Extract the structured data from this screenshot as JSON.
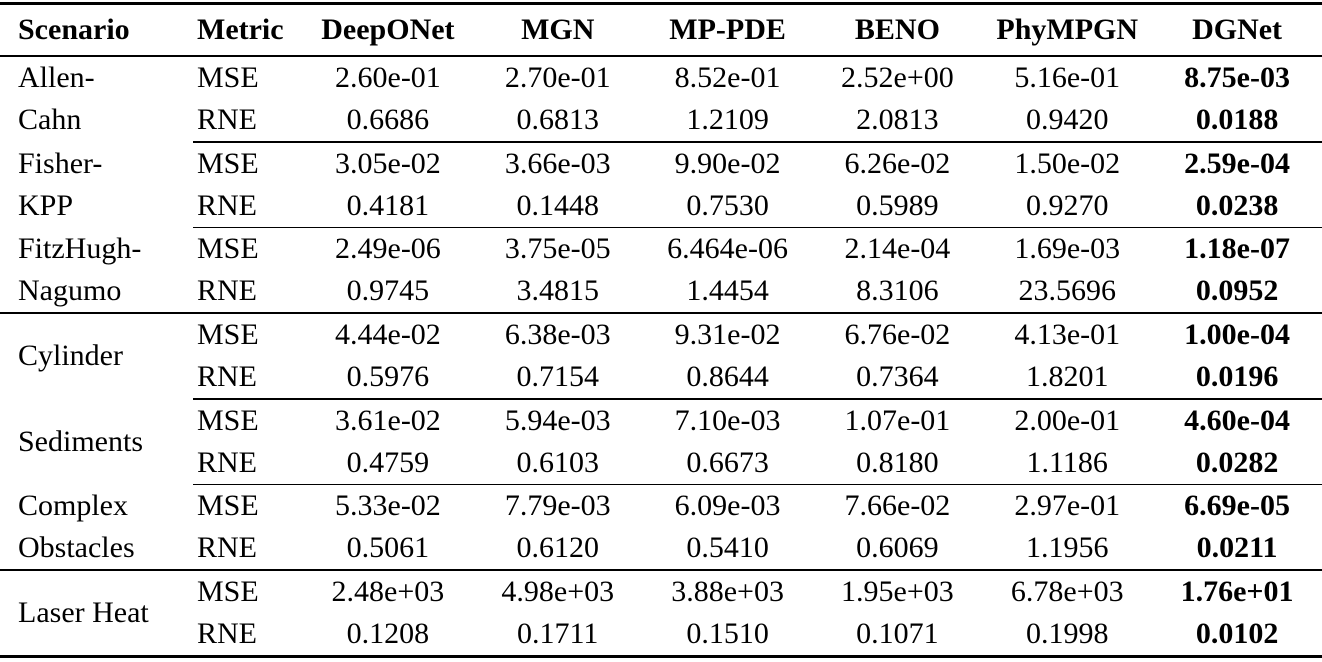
{
  "table": {
    "columns": [
      "Scenario",
      "Metric",
      "DeepONet",
      "MGN",
      "MP-PDE",
      "BENO",
      "PhyMPGN",
      "DGNet"
    ],
    "best_method": "DGNet",
    "groups": [
      {
        "scenario": "Allen-Cahn",
        "scenario_lines": [
          "Allen-",
          "Cahn"
        ],
        "rows": [
          {
            "metric": "MSE",
            "values": [
              "2.60e-01",
              "2.70e-01",
              "8.52e-01",
              "2.52e+00",
              "5.16e-01",
              "8.75e-03"
            ]
          },
          {
            "metric": "RNE",
            "values": [
              "0.6686",
              "0.6813",
              "1.2109",
              "2.0813",
              "0.9420",
              "0.0188"
            ]
          }
        ]
      },
      {
        "scenario": "Fisher-KPP",
        "scenario_lines": [
          "Fisher-",
          "KPP"
        ],
        "rows": [
          {
            "metric": "MSE",
            "values": [
              "3.05e-02",
              "3.66e-03",
              "9.90e-02",
              "6.26e-02",
              "1.50e-02",
              "2.59e-04"
            ]
          },
          {
            "metric": "RNE",
            "values": [
              "0.4181",
              "0.1448",
              "0.7530",
              "0.5989",
              "0.9270",
              "0.0238"
            ]
          }
        ]
      },
      {
        "scenario": "FitzHugh-Nagumo",
        "scenario_lines": [
          "FitzHugh-",
          "Nagumo"
        ],
        "rows": [
          {
            "metric": "MSE",
            "values": [
              "2.49e-06",
              "3.75e-05",
              "6.464e-06",
              "2.14e-04",
              "1.69e-03",
              "1.18e-07"
            ]
          },
          {
            "metric": "RNE",
            "values": [
              "0.9745",
              "3.4815",
              "1.4454",
              "8.3106",
              "23.5696",
              "0.0952"
            ]
          }
        ]
      },
      {
        "scenario": "Cylinder",
        "scenario_lines": [
          "Cylinder"
        ],
        "rows": [
          {
            "metric": "MSE",
            "values": [
              "4.44e-02",
              "6.38e-03",
              "9.31e-02",
              "6.76e-02",
              "4.13e-01",
              "1.00e-04"
            ]
          },
          {
            "metric": "RNE",
            "values": [
              "0.5976",
              "0.7154",
              "0.8644",
              "0.7364",
              "1.8201",
              "0.0196"
            ]
          }
        ]
      },
      {
        "scenario": "Sediments",
        "scenario_lines": [
          "Sediments"
        ],
        "rows": [
          {
            "metric": "MSE",
            "values": [
              "3.61e-02",
              "5.94e-03",
              "7.10e-03",
              "1.07e-01",
              "2.00e-01",
              "4.60e-04"
            ]
          },
          {
            "metric": "RNE",
            "values": [
              "0.4759",
              "0.6103",
              "0.6673",
              "0.8180",
              "1.1186",
              "0.0282"
            ]
          }
        ]
      },
      {
        "scenario": "Complex Obstacles",
        "scenario_lines": [
          "Complex",
          "Obstacles"
        ],
        "rows": [
          {
            "metric": "MSE",
            "values": [
              "5.33e-02",
              "7.79e-03",
              "6.09e-03",
              "7.66e-02",
              "2.97e-01",
              "6.69e-05"
            ]
          },
          {
            "metric": "RNE",
            "values": [
              "0.5061",
              "0.6120",
              "0.5410",
              "0.6069",
              "1.1956",
              "0.0211"
            ]
          }
        ]
      },
      {
        "scenario": "Laser Heat",
        "scenario_lines": [
          "Laser Heat"
        ],
        "rows": [
          {
            "metric": "MSE",
            "values": [
              "2.48e+03",
              "4.98e+03",
              "3.88e+03",
              "1.95e+03",
              "6.78e+03",
              "1.76e+01"
            ]
          },
          {
            "metric": "RNE",
            "values": [
              "0.1208",
              "0.1711",
              "0.1510",
              "0.1071",
              "0.1998",
              "0.0102"
            ]
          }
        ]
      }
    ],
    "colors": {
      "rule": "#000000",
      "text": "#000000",
      "background": "#ffffff"
    }
  }
}
